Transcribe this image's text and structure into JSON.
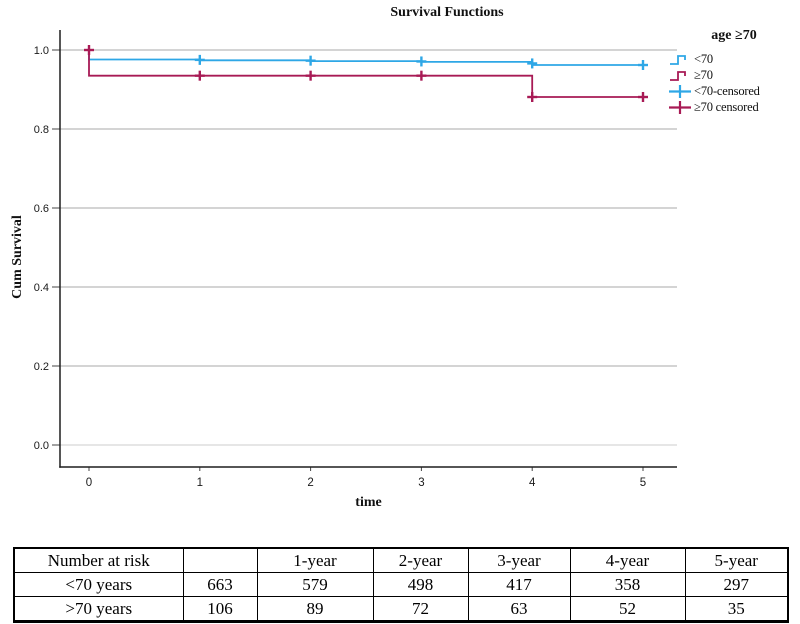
{
  "chart": {
    "title": "Survival Functions",
    "xlabel": "time",
    "ylabel": "Cum Survival",
    "legend": {
      "title": "age ≥70",
      "items": [
        {
          "label": "<70",
          "glyph": "step",
          "color": "#2ea7e6"
        },
        {
          "label": "≥70",
          "glyph": "step",
          "color": "#a81a55"
        },
        {
          "label": "<70-censored",
          "glyph": "plus",
          "color": "#2ea7e6"
        },
        {
          "label": "≥70 censored",
          "glyph": "plus",
          "color": "#a81a55"
        }
      ]
    }
  },
  "chart_data": {
    "type": "line",
    "subtype": "kaplan-meier-step",
    "title": "Survival Functions",
    "xlabel": "time",
    "ylabel": "Cum Survival",
    "xlim": [
      0,
      5
    ],
    "ylim": [
      0.0,
      1.0
    ],
    "x_ticks": [
      0,
      1,
      2,
      3,
      4,
      5
    ],
    "y_ticks": [
      0.0,
      0.2,
      0.4,
      0.6,
      0.8,
      1.0
    ],
    "grid": "horizontal",
    "legend_position": "right",
    "colors": {
      "grid": "#a8a8a8",
      "grid_zero": "#cccccc",
      "axis": "#1f1f1f"
    },
    "series": [
      {
        "name": "<70",
        "color": "#2ea7e6",
        "steps": [
          [
            0,
            1.0
          ],
          [
            0,
            0.976
          ],
          [
            1,
            0.976
          ],
          [
            1,
            0.974
          ],
          [
            2,
            0.974
          ],
          [
            2,
            0.972
          ],
          [
            3,
            0.972
          ],
          [
            3,
            0.97
          ],
          [
            4,
            0.97
          ],
          [
            4,
            0.962
          ],
          [
            5,
            0.962
          ]
        ],
        "censored": [
          [
            1,
            0.975
          ],
          [
            2,
            0.973
          ],
          [
            3,
            0.971
          ],
          [
            4,
            0.966
          ],
          [
            5,
            0.962
          ]
        ]
      },
      {
        "name": "≥70",
        "color": "#a81a55",
        "steps": [
          [
            0,
            1.0
          ],
          [
            0,
            0.935
          ],
          [
            4,
            0.935
          ],
          [
            4,
            0.881
          ],
          [
            5,
            0.881
          ]
        ],
        "censored": [
          [
            0,
            1.0
          ],
          [
            1,
            0.935
          ],
          [
            2,
            0.935
          ],
          [
            3,
            0.935
          ],
          [
            4,
            0.881
          ],
          [
            5,
            0.881
          ]
        ]
      }
    ]
  },
  "table": {
    "header": [
      "Number at risk",
      "",
      "1-year",
      "2-year",
      "3-year",
      "4-year",
      "5-year"
    ],
    "rows": [
      [
        "<70 years",
        "663",
        "579",
        "498",
        "417",
        "358",
        "297"
      ],
      [
        ">70 years",
        "106",
        "89",
        "72",
        "63",
        "52",
        "35"
      ]
    ]
  }
}
